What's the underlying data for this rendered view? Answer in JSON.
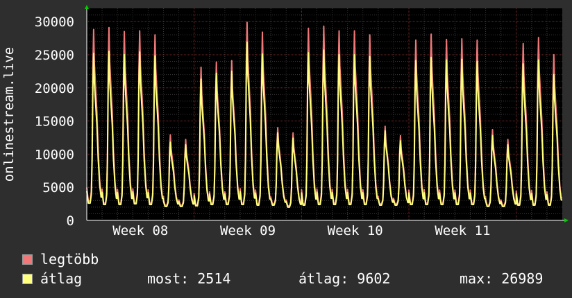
{
  "chart_data": {
    "type": "line",
    "title": "",
    "ylabel": "onlinestream.live",
    "xlabel": "",
    "ylim": [
      0,
      32000
    ],
    "yticks": [
      0,
      5000,
      10000,
      15000,
      20000,
      25000,
      30000
    ],
    "xtick_labels": [
      "Week 08",
      "Week 09",
      "Week 10",
      "Week 11"
    ],
    "x_unit": "day",
    "x_range": [
      0,
      31
    ],
    "x": [
      0.5,
      1.5,
      2.5,
      3.5,
      4.5,
      5.5,
      6.5,
      7.5,
      8.5,
      9.5,
      10.5,
      11.5,
      12.5,
      13.5,
      14.5,
      15.5,
      16.5,
      17.5,
      18.5,
      19.5,
      20.5,
      21.5,
      22.5,
      23.5,
      24.5,
      25.5,
      26.5,
      27.5,
      28.5,
      29.5,
      30.5
    ],
    "grid": true,
    "series": [
      {
        "name": "legtöbb",
        "color": "#f07878",
        "peaks": [
          28800,
          29100,
          28500,
          28600,
          28000,
          12900,
          12200,
          23100,
          23900,
          24100,
          29900,
          28400,
          14000,
          13200,
          29000,
          29300,
          28600,
          28600,
          28000,
          14200,
          12800,
          27200,
          28100,
          27300,
          27400,
          27200,
          13700,
          12200,
          26700,
          27600,
          25000
        ],
        "troughs": [
          2900,
          2600,
          2600,
          2700,
          2600,
          2300,
          2300,
          2400,
          2600,
          2600,
          2600,
          2500,
          2500,
          2200,
          2500,
          2600,
          2600,
          2600,
          2600,
          2500,
          2500,
          2600,
          2600,
          2600,
          2600,
          2600,
          2300,
          2300,
          2500,
          2500,
          2500
        ]
      },
      {
        "name": "átlag",
        "color": "#ffff80",
        "peaks": [
          25200,
          25500,
          25000,
          25400,
          24800,
          11800,
          11400,
          21300,
          22200,
          22500,
          26900,
          25100,
          13200,
          12400,
          25300,
          25700,
          25000,
          25000,
          24700,
          13500,
          12000,
          24100,
          24600,
          24200,
          24300,
          24000,
          12800,
          11400,
          23600,
          24200,
          22000
        ],
        "troughs": [
          2600,
          2400,
          2400,
          2500,
          2400,
          2100,
          2100,
          2200,
          2400,
          2400,
          2400,
          2300,
          2300,
          2000,
          2300,
          2400,
          2400,
          2400,
          2400,
          2300,
          2300,
          2400,
          2400,
          2400,
          2400,
          2400,
          2100,
          2100,
          2300,
          2300,
          2300
        ]
      }
    ]
  },
  "legend": {
    "items": [
      {
        "label": "legtöbb",
        "color": "#f07878"
      },
      {
        "label": "átlag",
        "color": "#ffff80"
      }
    ],
    "stats": {
      "now": "most: 2514",
      "avg": "átlag: 9602",
      "max": "max: 26989"
    }
  }
}
